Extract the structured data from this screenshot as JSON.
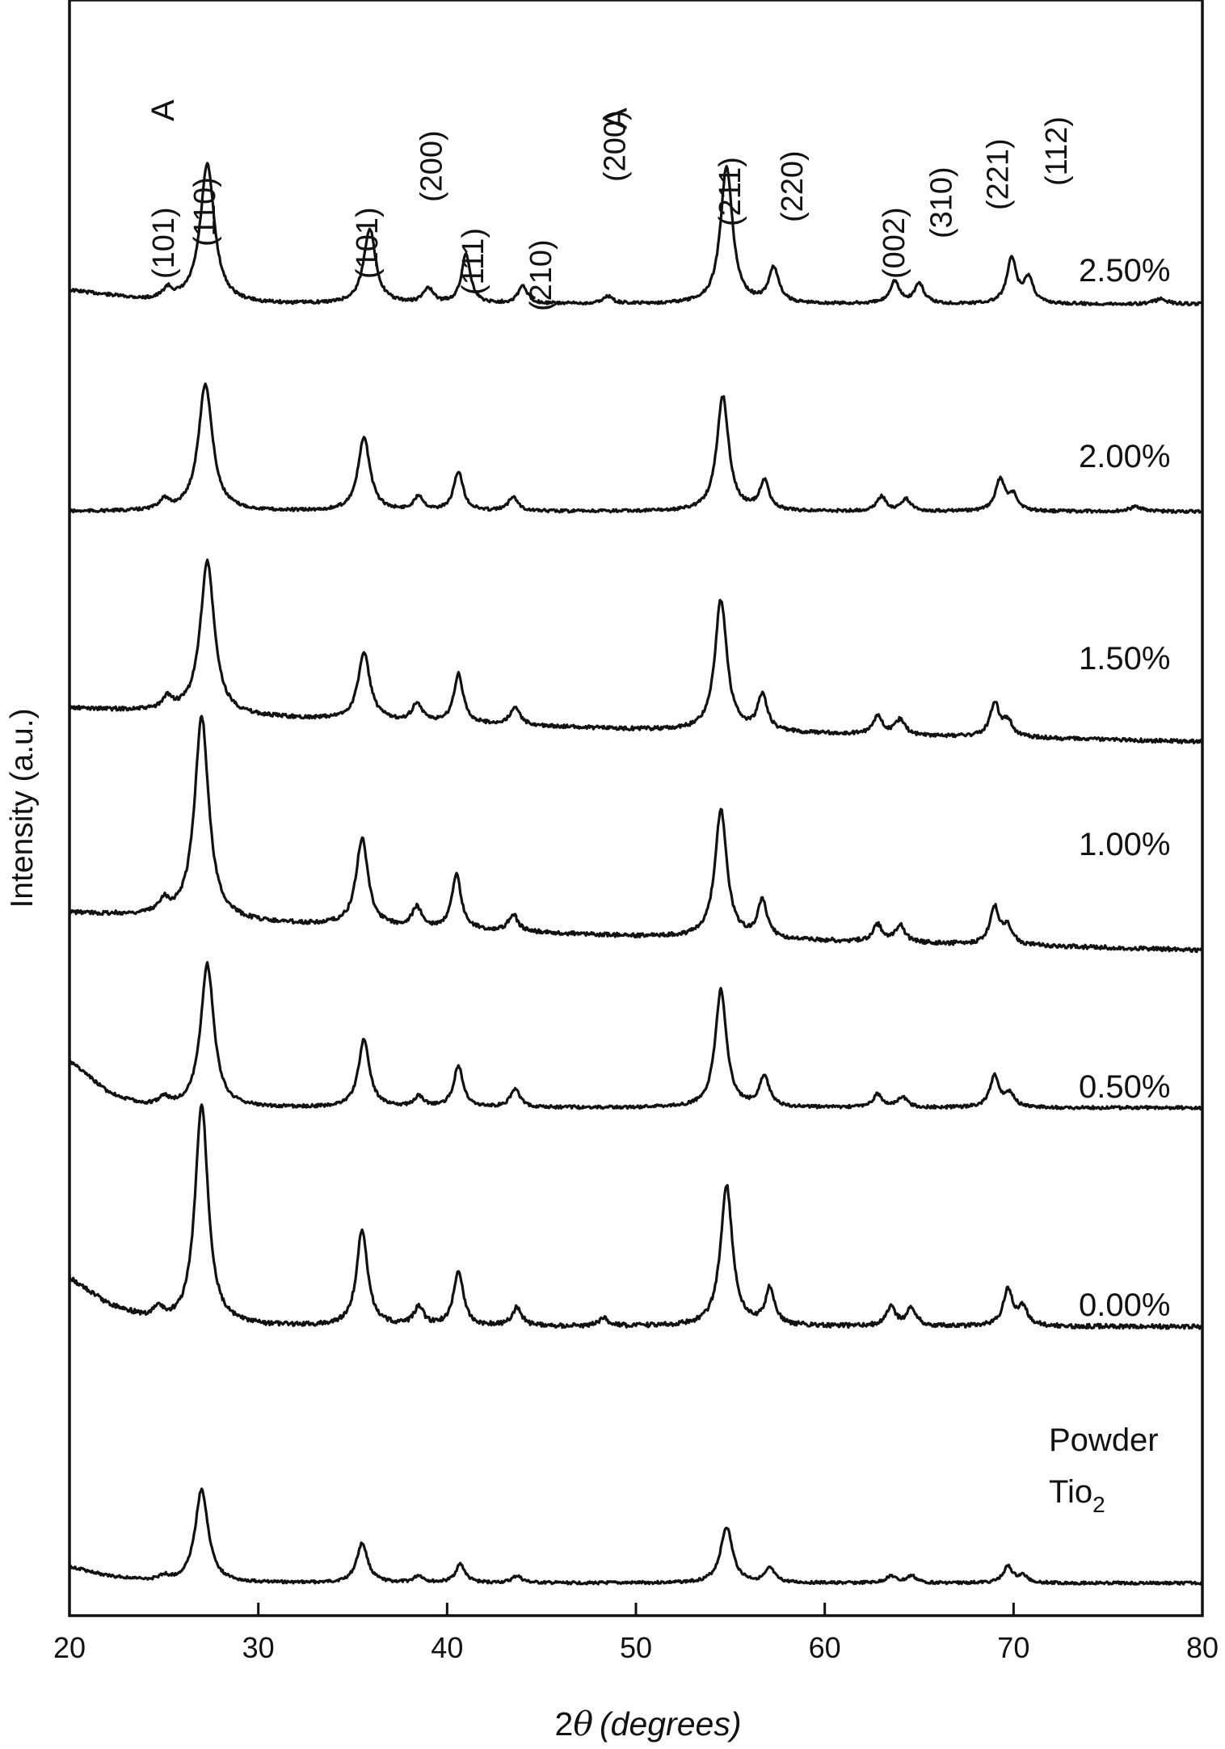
{
  "chart_data": {
    "type": "line",
    "title": "",
    "xlabel": "2θ (degrees)",
    "xlabel_parts": {
      "prefix": "2",
      "theta": "θ",
      "unit": "(degrees)"
    },
    "ylabel": "Intensity (a.u.)",
    "xlim": [
      20,
      80
    ],
    "x_ticks": [
      20,
      30,
      40,
      50,
      60,
      70,
      80
    ],
    "y_ticks": [],
    "grid": false,
    "legend": "none",
    "line_color": "#111111",
    "peak_positions": [
      25.2,
      27.3,
      35.9,
      39.0,
      41.0,
      44.0,
      48.0,
      54.8,
      57.2,
      63.7,
      65.0,
      69.8,
      70.7
    ],
    "series": [
      {
        "name": "2.50%",
        "baseline": [
          [
            20,
            0.83
          ],
          [
            24,
            0.87
          ],
          [
            30,
            0.885
          ],
          [
            50,
            0.885
          ],
          [
            80,
            0.885
          ]
        ],
        "peaks": [
          [
            25.2,
            0.04,
            0.3
          ],
          [
            27.3,
            0.55,
            0.45
          ],
          [
            35.9,
            0.3,
            0.38
          ],
          [
            39.0,
            0.06,
            0.3
          ],
          [
            41.0,
            0.2,
            0.28
          ],
          [
            44.0,
            0.07,
            0.3
          ],
          [
            48.5,
            0.03,
            0.3
          ],
          [
            54.8,
            0.55,
            0.38
          ],
          [
            57.3,
            0.14,
            0.32
          ],
          [
            63.7,
            0.09,
            0.3
          ],
          [
            65.0,
            0.08,
            0.3
          ],
          [
            69.9,
            0.18,
            0.3
          ],
          [
            70.8,
            0.1,
            0.3
          ],
          [
            77.8,
            0.02,
            0.4
          ]
        ]
      },
      {
        "name": "2.00%",
        "baseline": [
          [
            20,
            1.0
          ],
          [
            80,
            1.0
          ]
        ],
        "peaks": [
          [
            25.0,
            0.04,
            0.3
          ],
          [
            27.2,
            0.52,
            0.45
          ],
          [
            35.6,
            0.3,
            0.38
          ],
          [
            38.5,
            0.06,
            0.3
          ],
          [
            40.6,
            0.16,
            0.3
          ],
          [
            43.5,
            0.06,
            0.3
          ],
          [
            54.6,
            0.47,
            0.38
          ],
          [
            56.8,
            0.12,
            0.3
          ],
          [
            63.0,
            0.06,
            0.3
          ],
          [
            64.3,
            0.05,
            0.3
          ],
          [
            69.3,
            0.13,
            0.3
          ],
          [
            70.0,
            0.06,
            0.3
          ],
          [
            76.5,
            0.02,
            0.4
          ]
        ]
      },
      {
        "name": "1.50%",
        "baseline": [
          [
            20,
            0.85
          ],
          [
            24,
            0.86
          ],
          [
            30,
            0.88
          ],
          [
            50,
            0.92
          ],
          [
            80,
            0.96
          ]
        ],
        "peaks": [
          [
            25.2,
            0.04,
            0.3
          ],
          [
            27.3,
            0.5,
            0.45
          ],
          [
            35.6,
            0.22,
            0.38
          ],
          [
            38.4,
            0.06,
            0.3
          ],
          [
            40.6,
            0.16,
            0.3
          ],
          [
            43.6,
            0.06,
            0.3
          ],
          [
            54.5,
            0.43,
            0.38
          ],
          [
            56.7,
            0.12,
            0.3
          ],
          [
            62.8,
            0.06,
            0.3
          ],
          [
            64.0,
            0.05,
            0.3
          ],
          [
            69.0,
            0.11,
            0.3
          ],
          [
            69.7,
            0.05,
            0.3
          ]
        ]
      },
      {
        "name": "1.00%",
        "baseline": [
          [
            20,
            0.86
          ],
          [
            24,
            0.87
          ],
          [
            30,
            0.89
          ],
          [
            50,
            0.93
          ],
          [
            80,
            0.97
          ]
        ],
        "peaks": [
          [
            25.0,
            0.04,
            0.3
          ],
          [
            27.0,
            0.6,
            0.45
          ],
          [
            35.5,
            0.26,
            0.38
          ],
          [
            38.4,
            0.06,
            0.3
          ],
          [
            40.5,
            0.16,
            0.3
          ],
          [
            43.5,
            0.05,
            0.3
          ],
          [
            54.5,
            0.38,
            0.38
          ],
          [
            56.7,
            0.11,
            0.3
          ],
          [
            62.8,
            0.05,
            0.3
          ],
          [
            64.0,
            0.05,
            0.3
          ],
          [
            69.0,
            0.11,
            0.3
          ],
          [
            69.7,
            0.05,
            0.3
          ]
        ]
      },
      {
        "name": "0.50%",
        "baseline": [
          [
            20,
            0.72
          ],
          [
            21,
            0.78
          ],
          [
            22,
            0.84
          ],
          [
            23,
            0.87
          ],
          [
            24,
            0.89
          ],
          [
            26,
            0.9
          ],
          [
            80,
            0.9
          ]
        ],
        "peaks": [
          [
            25.0,
            0.03,
            0.3
          ],
          [
            27.3,
            0.55,
            0.42
          ],
          [
            35.6,
            0.26,
            0.35
          ],
          [
            38.5,
            0.04,
            0.3
          ],
          [
            40.6,
            0.16,
            0.3
          ],
          [
            43.6,
            0.07,
            0.3
          ],
          [
            54.5,
            0.45,
            0.36
          ],
          [
            56.8,
            0.12,
            0.3
          ],
          [
            62.8,
            0.05,
            0.3
          ],
          [
            64.1,
            0.04,
            0.3
          ],
          [
            69.0,
            0.12,
            0.3
          ],
          [
            69.8,
            0.05,
            0.3
          ]
        ]
      },
      {
        "name": "0.00%",
        "baseline": [
          [
            20,
            0.79
          ],
          [
            22,
            0.86
          ],
          [
            24,
            0.9
          ],
          [
            26,
            0.92
          ],
          [
            80,
            0.92
          ]
        ],
        "peaks": [
          [
            24.7,
            0.03,
            0.3
          ],
          [
            27.0,
            0.6,
            0.42
          ],
          [
            35.5,
            0.26,
            0.35
          ],
          [
            38.5,
            0.05,
            0.3
          ],
          [
            40.6,
            0.15,
            0.3
          ],
          [
            43.7,
            0.05,
            0.3
          ],
          [
            48.3,
            0.02,
            0.3
          ],
          [
            54.8,
            0.38,
            0.38
          ],
          [
            57.1,
            0.1,
            0.3
          ],
          [
            63.5,
            0.05,
            0.3
          ],
          [
            64.6,
            0.05,
            0.3
          ],
          [
            69.7,
            0.1,
            0.3
          ],
          [
            70.5,
            0.05,
            0.3
          ]
        ]
      },
      {
        "name": "Powder Tio2",
        "label_lines": [
          "Powder",
          "Tio"
        ],
        "label_subscript": "2",
        "baseline": [
          [
            20,
            0.86
          ],
          [
            22,
            0.9
          ],
          [
            24,
            0.92
          ],
          [
            26,
            0.93
          ],
          [
            80,
            0.93
          ]
        ],
        "peaks": [
          [
            25.0,
            0.02,
            0.3
          ],
          [
            27.0,
            0.4,
            0.42
          ],
          [
            35.5,
            0.17,
            0.35
          ],
          [
            38.5,
            0.03,
            0.3
          ],
          [
            40.7,
            0.08,
            0.3
          ],
          [
            43.7,
            0.03,
            0.3
          ],
          [
            54.8,
            0.24,
            0.38
          ],
          [
            57.1,
            0.06,
            0.3
          ],
          [
            63.5,
            0.03,
            0.3
          ],
          [
            64.6,
            0.03,
            0.3
          ],
          [
            69.7,
            0.07,
            0.3
          ],
          [
            70.5,
            0.03,
            0.3
          ]
        ]
      }
    ],
    "peak_labels": [
      {
        "text": "(101)",
        "x": 25.0,
        "color": "#111111"
      },
      {
        "text": "A",
        "x": 25.0,
        "color": "#d42b2b"
      },
      {
        "text": "(110)",
        "x": 27.2,
        "color": "#111111"
      },
      {
        "text": "(101)",
        "x": 35.8,
        "color": "#111111"
      },
      {
        "text": "(200)",
        "x": 39.2,
        "color": "#111111"
      },
      {
        "text": "(111)",
        "x": 41.4,
        "color": "#111111"
      },
      {
        "text": "(210)",
        "x": 45.0,
        "color": "#111111"
      },
      {
        "text": "(200)",
        "x": 48.9,
        "color": "#111111"
      },
      {
        "text": "A",
        "x": 49.0,
        "color": "#d42b2b"
      },
      {
        "text": "(211)",
        "x": 55.0,
        "color": "#111111"
      },
      {
        "text": "(220)",
        "x": 58.3,
        "color": "#111111"
      },
      {
        "text": "(002)",
        "x": 63.7,
        "color": "#111111"
      },
      {
        "text": "(310)",
        "x": 66.2,
        "color": "#111111"
      },
      {
        "text": "(221)",
        "x": 69.2,
        "color": "#111111"
      },
      {
        "text": "(112)",
        "x": 72.3,
        "color": "#111111"
      }
    ]
  }
}
